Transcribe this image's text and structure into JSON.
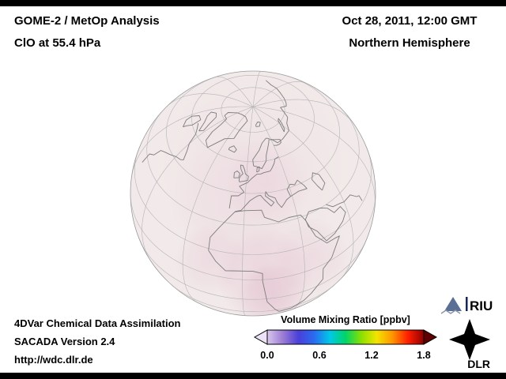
{
  "header": {
    "title_line1": "GOME-2 / MetOp Analysis",
    "title_line2": "ClO at 55.4 hPa",
    "date_line": "Oct 28, 2011, 12:00 GMT",
    "region_line": "Northern Hemisphere"
  },
  "footer": {
    "line1": "4DVar Chemical Data Assimilation",
    "line2": "SACADA Version 2.4",
    "line3": "http://wdc.dlr.de"
  },
  "colorbar": {
    "title": "Volume Mixing Ratio [ppbv]",
    "ticks": [
      "0.0",
      "0.6",
      "1.2",
      "1.8"
    ],
    "min": 0.0,
    "max": 1.8,
    "gradient_colors": [
      "#d9c7ee",
      "#9b7bd4",
      "#4a3fd9",
      "#2a6bf2",
      "#00c8e8",
      "#00d46a",
      "#8ae000",
      "#f2e400",
      "#ff9500",
      "#ff1e00",
      "#8f0000"
    ]
  },
  "logos": {
    "riu_label": "RIU",
    "dlr_label": "DLR"
  },
  "map": {
    "projection_note": "Northern Hemisphere",
    "fill_color": "#f2eaea",
    "anomaly_color": "#c06090"
  }
}
